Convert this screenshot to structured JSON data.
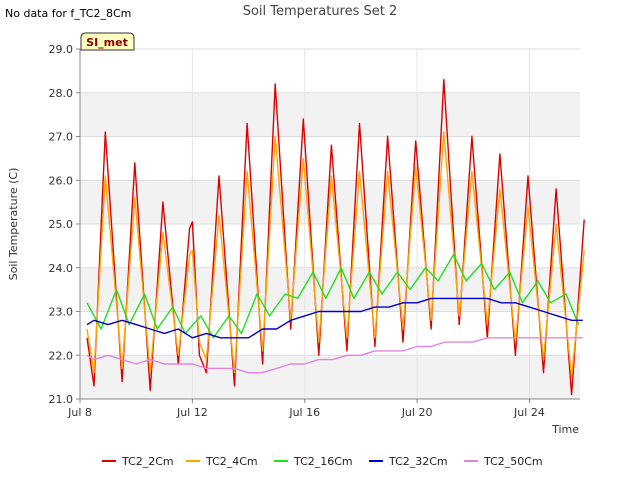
{
  "no_data_note": "No data for f_TC2_8Cm",
  "badge": "SI_met",
  "colors": {
    "TC2_2Cm": "#dd0000",
    "TC2_4Cm": "#ffa500",
    "TC2_16Cm": "#22dd22",
    "TC2_32Cm": "#0000cc",
    "TC2_50Cm": "#dd88dd",
    "band": "#f2f2f2"
  },
  "chart_data": {
    "type": "line",
    "title": "Soil Temperatures Set 2",
    "xlabel": "Time",
    "ylabel": "Soil Temperature (C)",
    "xlim": [
      8,
      25.8
    ],
    "ylim": [
      21.0,
      29.0
    ],
    "x_ticks": [
      {
        "value": 8,
        "label": "Jul 8"
      },
      {
        "value": 12,
        "label": "Jul 12"
      },
      {
        "value": 16,
        "label": "Jul 16"
      },
      {
        "value": 20,
        "label": "Jul 20"
      },
      {
        "value": 24,
        "label": "Jul 24"
      }
    ],
    "y_ticks": [
      21.0,
      22.0,
      23.0,
      24.0,
      25.0,
      26.0,
      27.0,
      28.0,
      29.0
    ],
    "grid": true,
    "legend_position": "bottom",
    "series": [
      {
        "name": "TC2_2Cm",
        "x": [
          8.25,
          8.5,
          8.9,
          9.5,
          9.95,
          10.5,
          10.95,
          11.5,
          11.9,
          12.0,
          12.25,
          12.5,
          12.95,
          13.5,
          13.95,
          14.5,
          14.95,
          15.5,
          15.95,
          16.5,
          16.95,
          17.5,
          17.95,
          18.5,
          18.95,
          19.5,
          19.95,
          20.5,
          20.95,
          21.5,
          21.95,
          22.5,
          22.95,
          23.5,
          23.95,
          24.5,
          24.95,
          25.5,
          25.95
        ],
        "y": [
          22.4,
          21.3,
          27.1,
          21.4,
          26.4,
          21.2,
          25.5,
          21.8,
          24.9,
          25.05,
          22.0,
          21.6,
          26.1,
          21.3,
          27.3,
          21.8,
          28.2,
          22.6,
          27.4,
          22.0,
          26.8,
          22.1,
          27.3,
          22.2,
          27.0,
          22.3,
          26.9,
          22.6,
          28.3,
          22.7,
          27.0,
          22.4,
          26.6,
          22.0,
          26.1,
          21.6,
          25.8,
          21.1,
          25.1
        ]
      },
      {
        "name": "TC2_4Cm",
        "x": [
          8.25,
          8.5,
          8.9,
          9.5,
          9.95,
          10.5,
          10.95,
          11.5,
          11.9,
          12.0,
          12.25,
          12.5,
          12.95,
          13.5,
          13.95,
          14.5,
          14.95,
          15.5,
          15.95,
          16.5,
          16.95,
          17.5,
          17.95,
          18.5,
          18.95,
          19.5,
          19.95,
          20.5,
          20.95,
          21.5,
          21.95,
          22.5,
          22.95,
          23.5,
          23.95,
          24.5,
          24.95,
          25.5,
          25.95
        ],
        "y": [
          22.6,
          21.6,
          26.1,
          21.7,
          25.6,
          21.6,
          24.8,
          22.0,
          24.3,
          24.4,
          22.3,
          21.9,
          25.2,
          21.6,
          26.2,
          22.1,
          27.0,
          22.8,
          26.5,
          22.3,
          26.1,
          22.4,
          26.2,
          22.4,
          26.2,
          22.6,
          26.3,
          22.8,
          27.1,
          22.9,
          26.2,
          22.7,
          25.8,
          22.3,
          25.4,
          21.9,
          25.0,
          21.5,
          24.4
        ]
      },
      {
        "name": "TC2_16Cm",
        "x": [
          8.25,
          8.75,
          9.3,
          9.75,
          10.3,
          10.75,
          11.3,
          11.75,
          12.3,
          12.75,
          13.3,
          13.75,
          14.3,
          14.75,
          15.3,
          15.75,
          16.3,
          16.75,
          17.3,
          17.75,
          18.3,
          18.75,
          19.3,
          19.75,
          20.3,
          20.75,
          21.3,
          21.75,
          22.3,
          22.75,
          23.3,
          23.75,
          24.3,
          24.75,
          25.3,
          25.75
        ],
        "y": [
          23.2,
          22.6,
          23.5,
          22.7,
          23.4,
          22.6,
          23.1,
          22.5,
          22.9,
          22.4,
          22.9,
          22.5,
          23.4,
          22.9,
          23.4,
          23.3,
          23.9,
          23.3,
          24.0,
          23.3,
          23.9,
          23.4,
          23.9,
          23.5,
          24.0,
          23.7,
          24.3,
          23.7,
          24.1,
          23.5,
          23.9,
          23.2,
          23.7,
          23.2,
          23.4,
          22.7
        ]
      },
      {
        "name": "TC2_32Cm",
        "x": [
          8.25,
          8.5,
          9.0,
          9.5,
          10.0,
          10.5,
          11.0,
          11.5,
          12.0,
          12.5,
          13.0,
          13.5,
          14.0,
          14.5,
          15.0,
          15.5,
          16.0,
          16.5,
          17.0,
          17.5,
          18.0,
          18.5,
          19.0,
          19.5,
          20.0,
          20.5,
          21.0,
          21.5,
          22.0,
          22.5,
          23.0,
          23.5,
          24.0,
          24.5,
          25.0,
          25.5,
          25.9
        ],
        "y": [
          22.7,
          22.8,
          22.7,
          22.8,
          22.7,
          22.6,
          22.5,
          22.6,
          22.4,
          22.5,
          22.4,
          22.4,
          22.4,
          22.6,
          22.6,
          22.8,
          22.9,
          23.0,
          23.0,
          23.0,
          23.0,
          23.1,
          23.1,
          23.2,
          23.2,
          23.3,
          23.3,
          23.3,
          23.3,
          23.3,
          23.2,
          23.2,
          23.1,
          23.0,
          22.9,
          22.8,
          22.8
        ]
      },
      {
        "name": "TC2_50Cm",
        "x": [
          8.25,
          8.5,
          9.0,
          9.5,
          10.0,
          10.5,
          11.0,
          11.5,
          12.0,
          12.5,
          13.0,
          13.5,
          14.0,
          14.5,
          15.0,
          15.5,
          16.0,
          16.5,
          17.0,
          17.5,
          18.0,
          18.5,
          19.0,
          19.5,
          20.0,
          20.5,
          21.0,
          21.5,
          22.0,
          22.5,
          23.0,
          23.5,
          24.0,
          24.5,
          25.0,
          25.5,
          25.9
        ],
        "y": [
          22.0,
          21.9,
          22.0,
          21.9,
          21.8,
          21.9,
          21.8,
          21.8,
          21.8,
          21.7,
          21.7,
          21.7,
          21.6,
          21.6,
          21.7,
          21.8,
          21.8,
          21.9,
          21.9,
          22.0,
          22.0,
          22.1,
          22.1,
          22.1,
          22.2,
          22.2,
          22.3,
          22.3,
          22.3,
          22.4,
          22.4,
          22.4,
          22.4,
          22.4,
          22.4,
          22.4,
          22.4
        ]
      }
    ]
  }
}
